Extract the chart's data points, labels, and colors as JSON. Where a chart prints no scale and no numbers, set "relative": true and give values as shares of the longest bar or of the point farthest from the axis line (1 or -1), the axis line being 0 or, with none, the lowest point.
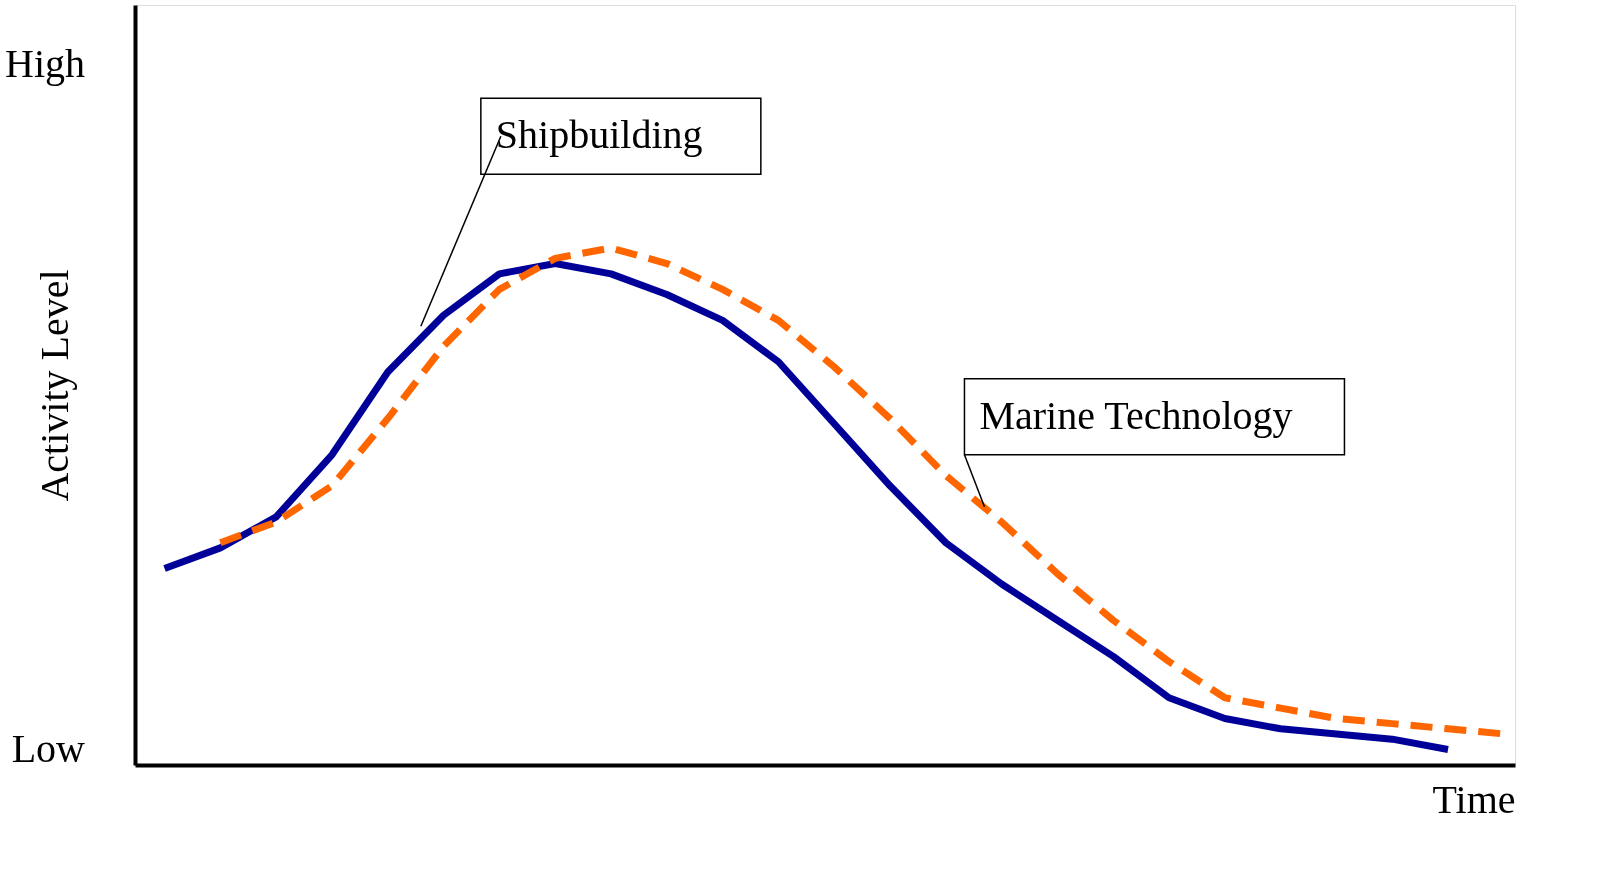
{
  "chart_data": {
    "type": "line",
    "relative": true,
    "xlabel": "Time",
    "ylabel": "Activity Level",
    "categories": [
      null,
      null,
      null,
      null,
      null,
      null,
      null,
      null,
      null,
      null,
      null,
      null,
      null,
      null,
      null,
      null,
      null,
      null,
      null,
      null,
      null,
      null,
      null,
      null,
      null
    ],
    "series": [
      {
        "name": "Shipbuilding",
        "color": "#000099",
        "line_style": "solid",
        "values": [
          0.38,
          0.42,
          0.48,
          0.6,
          0.76,
          0.87,
          0.95,
          0.97,
          0.95,
          0.91,
          0.86,
          0.78,
          0.66,
          0.54,
          0.43,
          0.35,
          0.28,
          0.21,
          0.13,
          0.09,
          0.07,
          0.06,
          0.05,
          0.03,
          null
        ]
      },
      {
        "name": "Marine Technology",
        "color": "#ff6600",
        "line_style": "dashed",
        "values": [
          null,
          0.43,
          0.47,
          0.54,
          0.67,
          0.81,
          0.92,
          0.98,
          1.0,
          0.97,
          0.92,
          0.86,
          0.77,
          0.67,
          0.56,
          0.47,
          0.37,
          0.28,
          0.2,
          0.13,
          0.11,
          0.09,
          0.08,
          0.07,
          0.06
        ]
      }
    ],
    "annotations": [
      "High",
      "Low"
    ]
  }
}
